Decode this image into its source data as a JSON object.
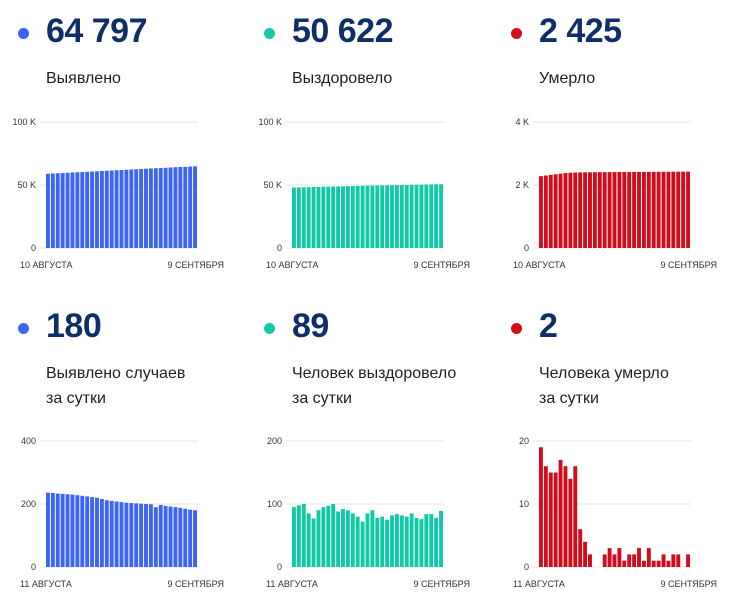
{
  "colors": {
    "blue": "#3c64f5",
    "teal": "#12c9a5",
    "red": "#d10c1b",
    "number": "#0f2d69"
  },
  "cards": [
    {
      "id": "cases-total",
      "value": "64 797",
      "label_lines": [
        "Выявлено"
      ],
      "color": "blue",
      "chart_data": {
        "type": "bar",
        "x_start_label": "10 АВГУСТА",
        "x_end_label": "9 СЕНТЯБРЯ",
        "ylim": [
          0,
          100000
        ],
        "y_ticks": [
          {
            "v": 0,
            "label": "0"
          },
          {
            "v": 50000,
            "label": "50 K"
          },
          {
            "v": 100000,
            "label": "100 K"
          }
        ],
        "values": [
          58900,
          59100,
          59300,
          59500,
          59700,
          59900,
          60100,
          60300,
          60500,
          60700,
          60900,
          61100,
          61300,
          61500,
          61700,
          61900,
          62100,
          62300,
          62500,
          62700,
          62900,
          63100,
          63300,
          63500,
          63700,
          63900,
          64100,
          64300,
          64400,
          64600,
          64797
        ]
      }
    },
    {
      "id": "recovered-total",
      "value": "50 622",
      "label_lines": [
        "Выздоровело"
      ],
      "color": "teal",
      "chart_data": {
        "type": "bar",
        "x_start_label": "10 АВГУСТА",
        "x_end_label": "9 СЕНТЯБРЯ",
        "ylim": [
          0,
          100000
        ],
        "y_ticks": [
          {
            "v": 0,
            "label": "0"
          },
          {
            "v": 50000,
            "label": "50 K"
          },
          {
            "v": 100000,
            "label": "100 K"
          }
        ],
        "values": [
          48000,
          48100,
          48200,
          48300,
          48400,
          48500,
          48600,
          48700,
          48800,
          48900,
          49000,
          49100,
          49200,
          49300,
          49400,
          49500,
          49550,
          49600,
          49700,
          49750,
          49850,
          49900,
          50000,
          50050,
          50150,
          50250,
          50300,
          50400,
          50480,
          50550,
          50622
        ]
      }
    },
    {
      "id": "deaths-total",
      "value": "2 425",
      "label_lines": [
        "Умерло"
      ],
      "color": "red",
      "chart_data": {
        "type": "bar",
        "x_start_label": "10 АВГУСТА",
        "x_end_label": "9 СЕНТЯБРЯ",
        "ylim": [
          0,
          4000
        ],
        "y_ticks": [
          {
            "v": 0,
            "label": "0"
          },
          {
            "v": 2000,
            "label": "2 K"
          },
          {
            "v": 4000,
            "label": "4 K"
          }
        ],
        "values": [
          2280,
          2300,
          2320,
          2340,
          2360,
          2380,
          2390,
          2395,
          2400,
          2402,
          2404,
          2406,
          2408,
          2409,
          2410,
          2411,
          2412,
          2413,
          2414,
          2415,
          2416,
          2417,
          2418,
          2418,
          2419,
          2420,
          2421,
          2422,
          2423,
          2424,
          2425
        ]
      }
    },
    {
      "id": "cases-daily",
      "value": "180",
      "label_lines": [
        "Выявлено случаев",
        "за сутки"
      ],
      "color": "blue",
      "chart_data": {
        "type": "bar",
        "x_start_label": "11 АВГУСТА",
        "x_end_label": "9 СЕНТЯБРЯ",
        "ylim": [
          0,
          400
        ],
        "y_ticks": [
          {
            "v": 0,
            "label": "0"
          },
          {
            "v": 200,
            "label": "200"
          },
          {
            "v": 400,
            "label": "400"
          }
        ],
        "values": [
          236,
          235,
          233,
          232,
          231,
          230,
          228,
          226,
          224,
          222,
          220,
          216,
          212,
          210,
          208,
          206,
          204,
          203,
          202,
          201,
          200,
          199,
          190,
          197,
          194,
          192,
          190,
          188,
          185,
          182,
          180
        ]
      }
    },
    {
      "id": "recovered-daily",
      "value": "89",
      "label_lines": [
        "Человек выздоровело",
        "за сутки"
      ],
      "color": "teal",
      "chart_data": {
        "type": "bar",
        "x_start_label": "11 АВГУСТА",
        "x_end_label": "9 СЕНТЯБРЯ",
        "ylim": [
          0,
          200
        ],
        "y_ticks": [
          {
            "v": 0,
            "label": "0"
          },
          {
            "v": 100,
            "label": "100"
          },
          {
            "v": 200,
            "label": "200"
          }
        ],
        "values": [
          95,
          98,
          100,
          85,
          77,
          90,
          95,
          97,
          100,
          88,
          92,
          90,
          85,
          80,
          72,
          85,
          90,
          78,
          80,
          75,
          82,
          84,
          82,
          80,
          85,
          78,
          76,
          84,
          84,
          78,
          89
        ]
      }
    },
    {
      "id": "deaths-daily",
      "value": "2",
      "label_lines": [
        "Человека умерло",
        "за сутки"
      ],
      "color": "red",
      "chart_data": {
        "type": "bar",
        "x_start_label": "11 АВГУСТА",
        "x_end_label": "9 СЕНТЯБРЯ",
        "ylim": [
          0,
          20
        ],
        "y_ticks": [
          {
            "v": 0,
            "label": "0"
          },
          {
            "v": 10,
            "label": "10"
          },
          {
            "v": 20,
            "label": "20"
          }
        ],
        "values": [
          19,
          16,
          15,
          15,
          17,
          16,
          14,
          16,
          6,
          4,
          2,
          0,
          0,
          2,
          3,
          2,
          3,
          1,
          2,
          2,
          3,
          1,
          3,
          1,
          1,
          2,
          1,
          2,
          2,
          0,
          2
        ]
      }
    }
  ]
}
